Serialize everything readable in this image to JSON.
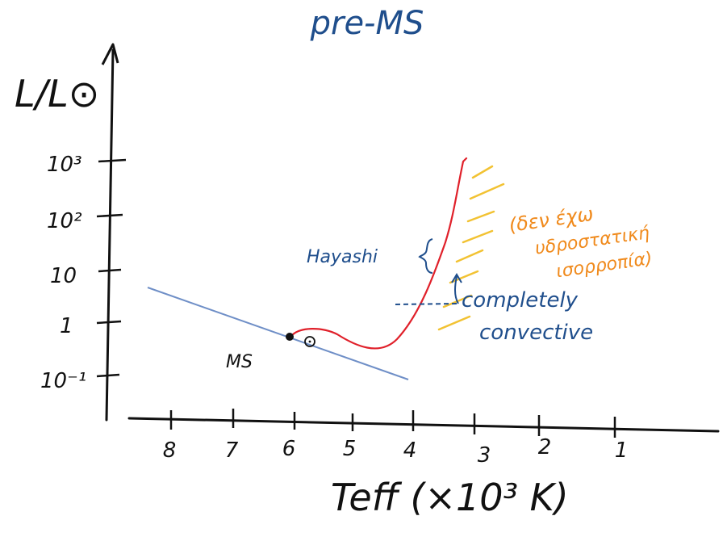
{
  "title": "pre-MS",
  "y_axis": {
    "label": "L/L⊙",
    "ticks": [
      "10³",
      "10²",
      "10",
      "1",
      "10⁻¹"
    ]
  },
  "x_axis": {
    "label": "Teff (×10³ K)",
    "ticks": [
      "8",
      "7",
      "6",
      "5",
      "4",
      "3",
      "2",
      "1"
    ]
  },
  "labels": {
    "ms": "MS",
    "hayashi": "Hayashi",
    "sun": "⊙",
    "completely_convective": "completely",
    "completely_convective_2": "convective",
    "forbidden_1": "(δεν έχω",
    "forbidden_2": "υδροστατική",
    "forbidden_3": "ισορροπία)"
  },
  "colors": {
    "ink_black": "#111111",
    "ink_blue": "#1f4e8c",
    "ms_line": "#6f8fc7",
    "track_red": "#e0202a",
    "hatch_yellow": "#f2c232",
    "ink_orange": "#f08a1c"
  }
}
